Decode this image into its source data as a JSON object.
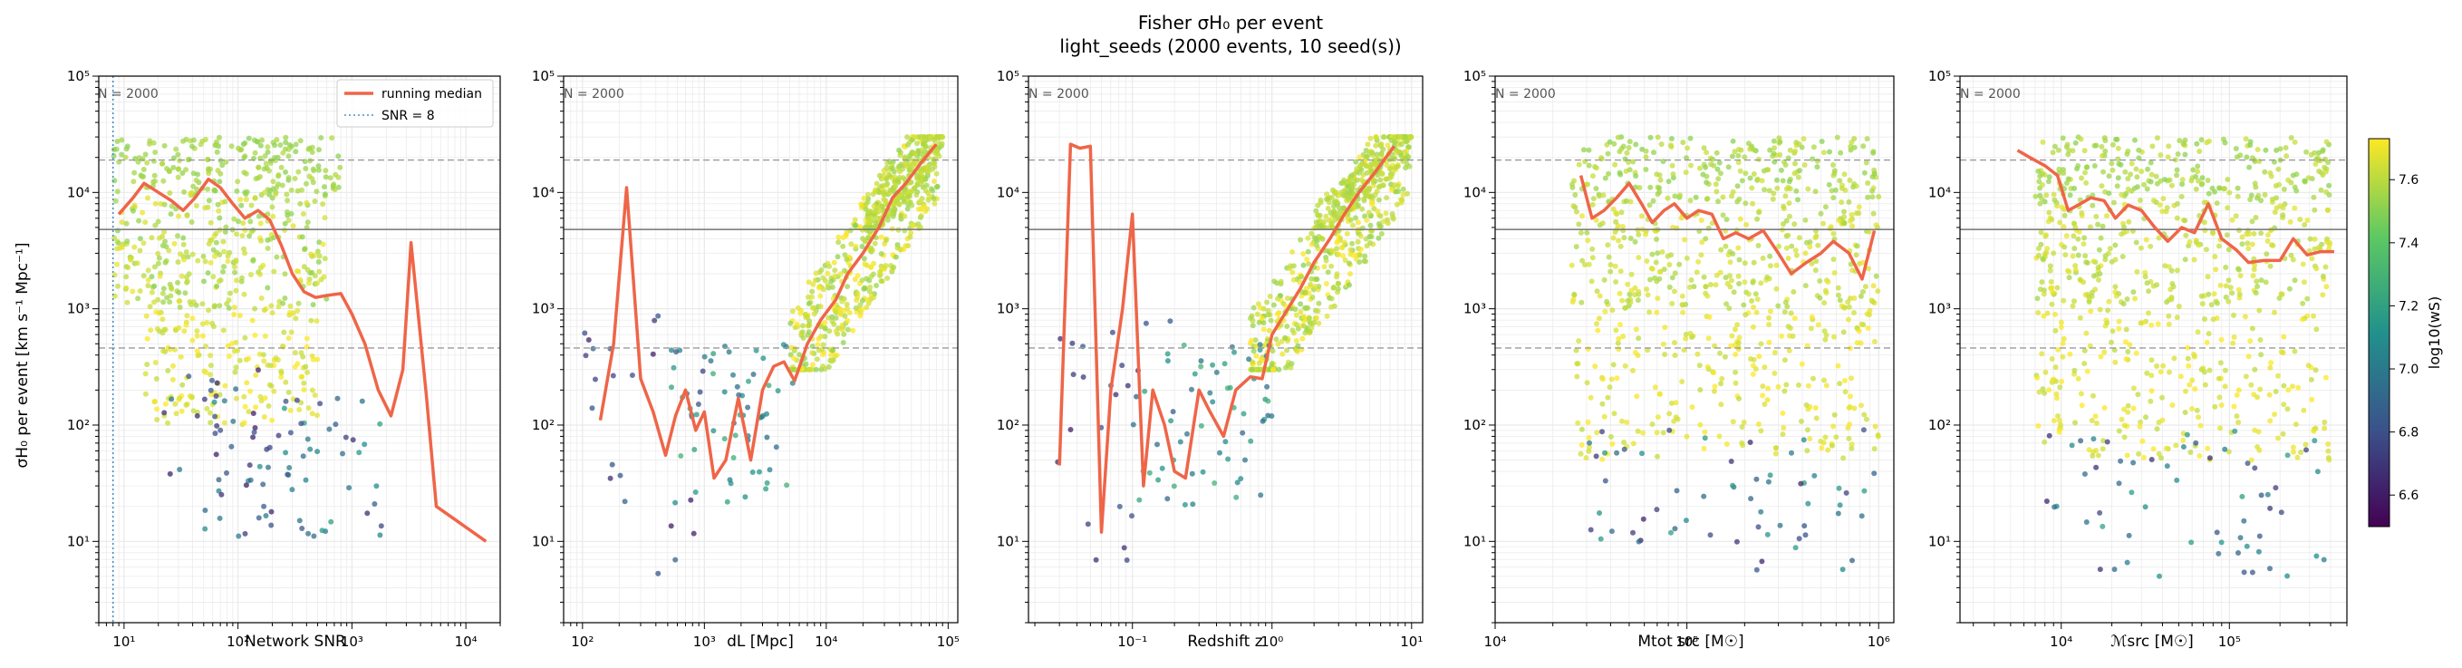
{
  "figure": {
    "title_line1": "Fisher σH₀ per event",
    "title_line2": "light_seeds  (2000 events, 10 seed(s))"
  },
  "colors": {
    "median": "#ef6548",
    "snr_line": "#4a90c2",
    "ref_solid": "#7f7f7f",
    "ref_dashed": "#9a9a9a",
    "grid": "#e9e9e9",
    "viridis": [
      "#440154",
      "#3b528b",
      "#21918c",
      "#5ec962",
      "#fde725"
    ]
  },
  "chart_data": [
    {
      "type": "scatter",
      "panel_label": "N = 2000",
      "xlabel": "Network SNR",
      "ylabel": "σH₀ per event [km s⁻¹ Mpc⁻¹]",
      "xscale": "log",
      "yscale": "log",
      "xlim": [
        6,
        20000
      ],
      "ylim": [
        2,
        100000
      ],
      "xtick_labels": [
        "10¹",
        "10²",
        "10³",
        "10⁴"
      ],
      "ytick_labels": [
        "10¹",
        "10²",
        "10³",
        "10⁴",
        "10⁵"
      ],
      "ref_lines_y": {
        "solid": 4800,
        "dashed": [
          19000,
          460
        ]
      },
      "vline_x": 8,
      "legend": {
        "position": "top-right",
        "entries": [
          "running median",
          "SNR = 8"
        ]
      },
      "running_median": {
        "x": [
          9,
          12,
          15,
          20,
          26,
          33,
          42,
          55,
          70,
          90,
          115,
          150,
          190,
          240,
          300,
          380,
          480,
          600,
          800,
          1000,
          1300,
          1700,
          2200,
          2800,
          3300,
          4500,
          5500,
          15000
        ],
        "y": [
          6500,
          9000,
          12000,
          10000,
          8500,
          7000,
          9000,
          13000,
          11000,
          8000,
          6000,
          7000,
          5800,
          3500,
          2000,
          1400,
          1250,
          1300,
          1350,
          900,
          500,
          200,
          120,
          300,
          3700,
          180,
          20,
          10
        ]
      },
      "clusters": [
        {
          "x": [
            8,
            800
          ],
          "y": [
            10000,
            30000
          ],
          "w": [
            7.5,
            7.6
          ],
          "n": 200
        },
        {
          "x": [
            8,
            600
          ],
          "y": [
            1000,
            10000
          ],
          "w": [
            7.5,
            7.7
          ],
          "n": 300
        },
        {
          "x": [
            15,
            500
          ],
          "y": [
            100,
            1000
          ],
          "w": [
            7.6,
            7.75
          ],
          "n": 180
        },
        {
          "x": [
            50,
            2000
          ],
          "y": [
            10,
            200
          ],
          "w": [
            6.6,
            7.2
          ],
          "n": 60
        },
        {
          "x": [
            20,
            400
          ],
          "y": [
            30,
            300
          ],
          "w": [
            6.6,
            7.0
          ],
          "n": 30
        }
      ]
    },
    {
      "type": "scatter",
      "panel_label": "N = 2000",
      "xlabel": "dL [Mpc]",
      "ylabel": "",
      "xscale": "log",
      "yscale": "log",
      "xlim": [
        70,
        120000
      ],
      "ylim": [
        2,
        100000
      ],
      "xtick_labels": [
        "10²",
        "10³",
        "10⁴",
        "10⁵"
      ],
      "ytick_labels": [
        "10¹",
        "10²",
        "10³",
        "10⁴",
        "10⁵"
      ],
      "ref_lines_y": {
        "solid": 4800,
        "dashed": [
          19000,
          460
        ]
      },
      "running_median": {
        "x": [
          140,
          180,
          230,
          300,
          380,
          480,
          580,
          700,
          850,
          1000,
          1200,
          1500,
          1900,
          2400,
          3000,
          3700,
          4500,
          5500,
          7000,
          9000,
          12000,
          15000,
          20000,
          27000,
          35000,
          45000,
          60000,
          80000
        ],
        "y": [
          110,
          500,
          11000,
          250,
          130,
          55,
          120,
          200,
          90,
          130,
          35,
          50,
          170,
          50,
          200,
          320,
          350,
          240,
          500,
          800,
          1200,
          2000,
          3000,
          5000,
          9000,
          12000,
          18000,
          26000
        ]
      },
      "clusters": [
        {
          "x": [
            5000,
            90000
          ],
          "y": [
            300,
            30000
          ],
          "w": [
            7.5,
            7.75
          ],
          "n": 500
        },
        {
          "x": [
            20000,
            90000
          ],
          "y": [
            5000,
            30000
          ],
          "w": [
            7.55,
            7.65
          ],
          "n": 200
        },
        {
          "x": [
            500,
            6000
          ],
          "y": [
            20,
            500
          ],
          "w": [
            6.9,
            7.3
          ],
          "n": 60
        },
        {
          "x": [
            100,
            1000
          ],
          "y": [
            5,
            1000
          ],
          "w": [
            6.6,
            6.9
          ],
          "n": 25
        }
      ]
    },
    {
      "type": "scatter",
      "panel_label": "N = 2000",
      "xlabel": "Redshift z",
      "ylabel": "",
      "xscale": "log",
      "yscale": "log",
      "xlim": [
        0.018,
        12
      ],
      "ylim": [
        2,
        100000
      ],
      "xtick_labels": [
        "10⁻¹",
        "10⁰",
        "10¹"
      ],
      "ytick_labels": [
        "10¹",
        "10²",
        "10³",
        "10⁴",
        "10⁵"
      ],
      "ref_lines_y": {
        "solid": 4800,
        "dashed": [
          19000,
          460
        ]
      },
      "running_median": {
        "x": [
          0.03,
          0.036,
          0.042,
          0.05,
          0.06,
          0.07,
          0.085,
          0.1,
          0.12,
          0.14,
          0.17,
          0.2,
          0.24,
          0.3,
          0.36,
          0.45,
          0.55,
          0.7,
          0.85,
          1,
          1.3,
          1.6,
          2,
          2.6,
          3.3,
          4.2,
          5.5,
          7.5
        ],
        "y": [
          45,
          26000,
          24000,
          25000,
          12,
          200,
          1000,
          6500,
          30,
          200,
          100,
          40,
          35,
          200,
          130,
          80,
          200,
          260,
          250,
          600,
          1000,
          1500,
          2500,
          4000,
          6500,
          10000,
          15000,
          25000
        ]
      },
      "clusters": [
        {
          "x": [
            0.7,
            10
          ],
          "y": [
            300,
            30000
          ],
          "w": [
            7.5,
            7.75
          ],
          "n": 500
        },
        {
          "x": [
            2,
            10
          ],
          "y": [
            5000,
            30000
          ],
          "w": [
            7.55,
            7.65
          ],
          "n": 200
        },
        {
          "x": [
            0.1,
            1
          ],
          "y": [
            20,
            500
          ],
          "w": [
            6.9,
            7.3
          ],
          "n": 60
        },
        {
          "x": [
            0.025,
            0.2
          ],
          "y": [
            5,
            1000
          ],
          "w": [
            6.6,
            6.9
          ],
          "n": 25
        }
      ]
    },
    {
      "type": "scatter",
      "panel_label": "N = 2000",
      "xlabel": "Mtot src [M☉]",
      "ylabel": "",
      "xscale": "log",
      "yscale": "log",
      "xlim": [
        10000,
        1200000
      ],
      "ylim": [
        2,
        100000
      ],
      "xtick_labels": [
        "10⁴",
        "10⁵",
        "10⁶"
      ],
      "ytick_labels": [
        "10¹",
        "10²",
        "10³",
        "10⁴",
        "10⁵"
      ],
      "ref_lines_y": {
        "solid": 4800,
        "dashed": [
          19000,
          460
        ]
      },
      "running_median": {
        "x": [
          28000,
          32000,
          37000,
          43000,
          50000,
          58000,
          66000,
          76000,
          86000,
          100000,
          115000,
          135000,
          155000,
          180000,
          210000,
          250000,
          300000,
          350000,
          420000,
          500000,
          580000,
          700000,
          820000,
          950000
        ],
        "y": [
          14000,
          6000,
          7000,
          9000,
          12000,
          8000,
          5500,
          7000,
          8000,
          6000,
          7000,
          6500,
          4000,
          4500,
          4000,
          4700,
          3000,
          2000,
          2500,
          3000,
          3800,
          3000,
          1800,
          4700
        ]
      },
      "clusters": [
        {
          "x": [
            25000,
            1000000
          ],
          "y": [
            8000,
            30000
          ],
          "w": [
            7.5,
            7.65
          ],
          "n": 250
        },
        {
          "x": [
            25000,
            1000000
          ],
          "y": [
            1000,
            8000
          ],
          "w": [
            7.55,
            7.7
          ],
          "n": 300
        },
        {
          "x": [
            25000,
            1000000
          ],
          "y": [
            50,
            1000
          ],
          "w": [
            7.6,
            7.75
          ],
          "n": 250
        },
        {
          "x": [
            30000,
            1000000
          ],
          "y": [
            5,
            100
          ],
          "w": [
            6.6,
            7.2
          ],
          "n": 60
        }
      ]
    },
    {
      "type": "scatter",
      "panel_label": "N = 2000",
      "xlabel": "ℳsrc [M☉]",
      "ylabel": "",
      "xscale": "log",
      "yscale": "log",
      "xlim": [
        2500,
        500000
      ],
      "ylim": [
        2,
        100000
      ],
      "xtick_labels": [
        "10⁴",
        "10⁵"
      ],
      "ytick_labels": [
        "10¹",
        "10²",
        "10³",
        "10⁴",
        "10⁵"
      ],
      "ref_lines_y": {
        "solid": 4800,
        "dashed": [
          19000,
          460
        ]
      },
      "running_median": {
        "x": [
          5500,
          6500,
          8000,
          9500,
          11000,
          13000,
          15000,
          18000,
          21000,
          25000,
          30000,
          36000,
          43000,
          52000,
          62000,
          75000,
          90000,
          110000,
          130000,
          160000,
          200000,
          240000,
          290000,
          350000,
          420000
        ],
        "y": [
          23000,
          20000,
          17000,
          14000,
          7000,
          8000,
          9000,
          8500,
          6000,
          7800,
          7000,
          5000,
          3800,
          5000,
          4500,
          8000,
          4000,
          3200,
          2500,
          2600,
          2600,
          4000,
          2900,
          3100,
          3100
        ]
      },
      "clusters": [
        {
          "x": [
            7000,
            400000
          ],
          "y": [
            8000,
            30000
          ],
          "w": [
            7.5,
            7.65
          ],
          "n": 250
        },
        {
          "x": [
            7000,
            400000
          ],
          "y": [
            1000,
            8000
          ],
          "w": [
            7.55,
            7.7
          ],
          "n": 300
        },
        {
          "x": [
            7000,
            400000
          ],
          "y": [
            50,
            1000
          ],
          "w": [
            7.6,
            7.75
          ],
          "n": 250
        },
        {
          "x": [
            8000,
            400000
          ],
          "y": [
            5,
            100
          ],
          "w": [
            6.6,
            7.2
          ],
          "n": 60
        }
      ]
    }
  ],
  "colorbar": {
    "label": "log10(wS)",
    "range": [
      6.5,
      7.73
    ],
    "tick_values": [
      6.6,
      6.8,
      7.0,
      7.2,
      7.4,
      7.6
    ],
    "tick_labels": [
      "6.6",
      "6.8",
      "7.0",
      "7.2",
      "7.4",
      "7.6"
    ]
  }
}
